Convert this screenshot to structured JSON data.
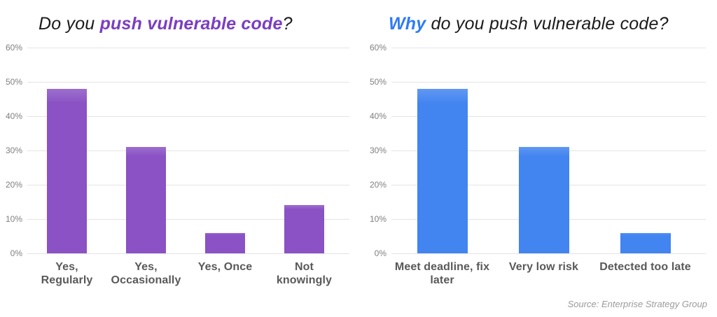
{
  "source_credit": "Source: Enterprise Strategy Group",
  "colors": {
    "purple_bar": "#8a52c4",
    "purple_accent": "#7b3ec1",
    "blue_bar": "#4284f0",
    "blue_accent": "#2f7bf6",
    "gridline": "#e4e4e4",
    "tick_label": "#7f7f7f",
    "category_label": "#595959",
    "title_text": "#1b1b1b",
    "source_text": "#9b9b9b"
  },
  "chart_data": [
    {
      "type": "bar",
      "title": "Do you push vulnerable code?",
      "title_parts": [
        {
          "text": "Do you ",
          "accent": false
        },
        {
          "text": "push vulnerable code",
          "accent": true
        },
        {
          "text": "?",
          "accent": false
        }
      ],
      "accent_color": "#7b3ec1",
      "bar_color": "#8a52c4",
      "categories": [
        "Yes,\nRegularly",
        "Yes,\nOccasionally",
        "Yes, Once",
        "Not\nknowingly"
      ],
      "values": [
        48,
        31,
        6,
        14
      ],
      "unit": "%",
      "xlabel": "",
      "ylabel": "",
      "ylim": [
        0,
        60
      ],
      "yticks": [
        "0%",
        "10%",
        "20%",
        "30%",
        "40%",
        "50%",
        "60%"
      ],
      "grid": true,
      "legend": "none"
    },
    {
      "type": "bar",
      "title": "Why do you push vulnerable code?",
      "title_parts": [
        {
          "text": "Why",
          "accent": true
        },
        {
          "text": " do you push vulnerable code?",
          "accent": false
        }
      ],
      "accent_color": "#2f7bf6",
      "bar_color": "#4284f0",
      "categories": [
        "Meet deadline, fix\nlater",
        "Very low risk",
        "Detected too late"
      ],
      "values": [
        48,
        31,
        6
      ],
      "unit": "%",
      "xlabel": "",
      "ylabel": "",
      "ylim": [
        0,
        60
      ],
      "yticks": [
        "0%",
        "10%",
        "20%",
        "30%",
        "40%",
        "50%",
        "60%"
      ],
      "grid": true,
      "legend": "none"
    }
  ]
}
